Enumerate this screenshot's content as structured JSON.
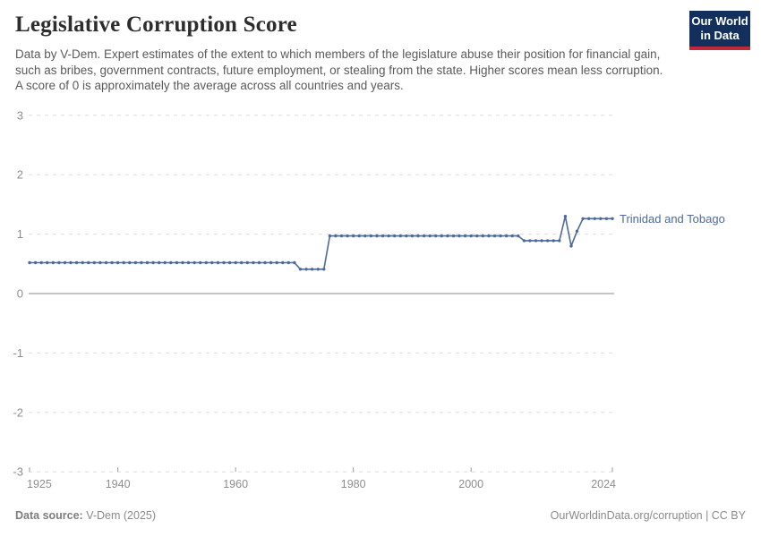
{
  "header": {
    "title": "Legislative Corruption Score",
    "subtitle": "Data by V-Dem. Expert estimates of the extent to which members of the legislature abuse their position for financial gain, such as bribes, government contracts, future employment, or stealing from the state. Higher scores mean less corruption. A score of 0 is approximately the average across all countries and years.",
    "logo": {
      "line1": "Our World",
      "line2": "in Data"
    }
  },
  "chart_data": {
    "type": "line",
    "title": "Legislative Corruption Score",
    "xlabel": "",
    "ylabel": "",
    "xlim": [
      1925,
      2024
    ],
    "ylim": [
      -3,
      3
    ],
    "x_ticks": [
      1925,
      1940,
      1960,
      1980,
      2000,
      2024
    ],
    "y_ticks": [
      3,
      2,
      1,
      0,
      -1,
      -2,
      -3
    ],
    "grid": "horizontal dashed gridlines, solid line at 0",
    "legend_position": "label at end of line",
    "series": [
      {
        "name": "Trinidad and Tobago",
        "color": "#4C6A9C",
        "x_start": 1925,
        "x_step": 1,
        "values": [
          0.52,
          0.52,
          0.52,
          0.52,
          0.52,
          0.52,
          0.52,
          0.52,
          0.52,
          0.52,
          0.52,
          0.52,
          0.52,
          0.52,
          0.52,
          0.52,
          0.52,
          0.52,
          0.52,
          0.52,
          0.52,
          0.52,
          0.52,
          0.52,
          0.52,
          0.52,
          0.52,
          0.52,
          0.52,
          0.52,
          0.52,
          0.52,
          0.52,
          0.52,
          0.52,
          0.52,
          0.52,
          0.52,
          0.52,
          0.52,
          0.52,
          0.52,
          0.52,
          0.52,
          0.52,
          0.52,
          0.41,
          0.41,
          0.41,
          0.41,
          0.41,
          0.97,
          0.97,
          0.97,
          0.97,
          0.97,
          0.97,
          0.97,
          0.97,
          0.97,
          0.97,
          0.97,
          0.97,
          0.97,
          0.97,
          0.97,
          0.97,
          0.97,
          0.97,
          0.97,
          0.97,
          0.97,
          0.97,
          0.97,
          0.97,
          0.97,
          0.97,
          0.97,
          0.97,
          0.97,
          0.97,
          0.97,
          0.97,
          0.97,
          0.89,
          0.89,
          0.89,
          0.89,
          0.89,
          0.89,
          0.89,
          1.3,
          0.8,
          1.05,
          1.26,
          1.26,
          1.26,
          1.26,
          1.26,
          1.26
        ]
      }
    ],
    "colors": {
      "grid": "#dcdcdc",
      "zero_line": "#a3a3a3",
      "tick_mark": "#9a9a9a",
      "tick_label": "#8e8e8e"
    }
  },
  "footer": {
    "source_label": "Data source:",
    "source_value": " V-Dem (2025)",
    "right_text": "OurWorldinData.org/corruption | CC BY"
  }
}
